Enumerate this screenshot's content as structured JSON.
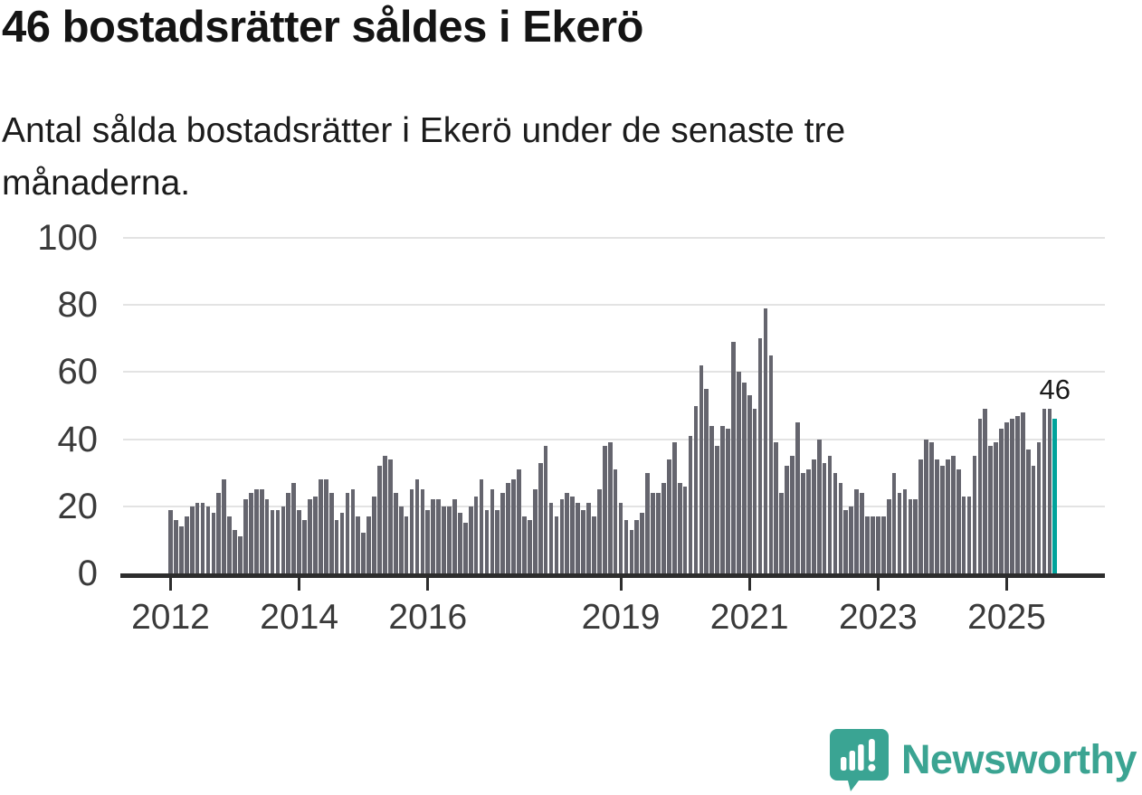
{
  "header": {
    "title": "46 bostadsrätter såldes i Ekerö",
    "subtitle": "Antal sålda bostadsrätter i Ekerö under de senaste tre månaderna."
  },
  "chart_data": {
    "type": "bar",
    "title": "46 bostadsrätter såldes i Ekerö",
    "subtitle": "Antal sålda bostadsrätter i Ekerö under de senaste tre månaderna.",
    "unit": "sålda bostadsrätter (rullande tre månader)",
    "start_month": "2012-01",
    "end_month": "2025-10",
    "values": [
      19,
      16,
      14,
      17,
      20,
      21,
      21,
      20,
      18,
      24,
      28,
      17,
      13,
      11,
      22,
      24,
      25,
      25,
      22,
      19,
      19,
      20,
      24,
      27,
      19,
      16,
      22,
      23,
      28,
      28,
      24,
      16,
      18,
      24,
      25,
      17,
      12,
      17,
      23,
      32,
      35,
      34,
      24,
      20,
      17,
      25,
      28,
      25,
      19,
      22,
      22,
      20,
      20,
      22,
      18,
      15,
      20,
      23,
      28,
      19,
      25,
      19,
      24,
      27,
      28,
      31,
      17,
      16,
      25,
      33,
      38,
      21,
      17,
      22,
      24,
      23,
      21,
      19,
      21,
      17,
      25,
      38,
      39,
      31,
      21,
      16,
      13,
      16,
      18,
      30,
      24,
      24,
      27,
      34,
      39,
      27,
      26,
      41,
      50,
      62,
      55,
      44,
      38,
      44,
      43,
      69,
      60,
      57,
      53,
      49,
      70,
      79,
      65,
      39,
      24,
      32,
      35,
      45,
      30,
      31,
      34,
      40,
      33,
      35,
      30,
      27,
      19,
      20,
      25,
      24,
      17,
      17,
      17,
      17,
      22,
      30,
      24,
      25,
      22,
      22,
      34,
      40,
      39,
      34,
      32,
      34,
      35,
      31,
      23,
      23,
      35,
      46,
      49,
      38,
      39,
      43,
      45,
      46,
      47,
      48,
      37,
      32,
      39,
      49,
      49,
      46
    ],
    "last_value": 46,
    "annotation": {
      "label": "46"
    },
    "y_ticks": [
      0,
      20,
      40,
      60,
      80,
      100
    ],
    "ylim": [
      0,
      100
    ],
    "x_ticks": [
      {
        "label": "2012",
        "month_index": 0
      },
      {
        "label": "2014",
        "month_index": 24
      },
      {
        "label": "2016",
        "month_index": 48
      },
      {
        "label": "2019",
        "month_index": 84
      },
      {
        "label": "2021",
        "month_index": 108
      },
      {
        "label": "2023",
        "month_index": 132
      },
      {
        "label": "2025",
        "month_index": 156
      },
      {
        "label": "2025",
        "month_index": 156
      }
    ],
    "grid": true,
    "legend": "none",
    "bar_color": "#65656e",
    "highlight_color": "#00a39b"
  },
  "footer": {
    "brand": "Newsworthy",
    "brand_color": "#3ba492"
  }
}
